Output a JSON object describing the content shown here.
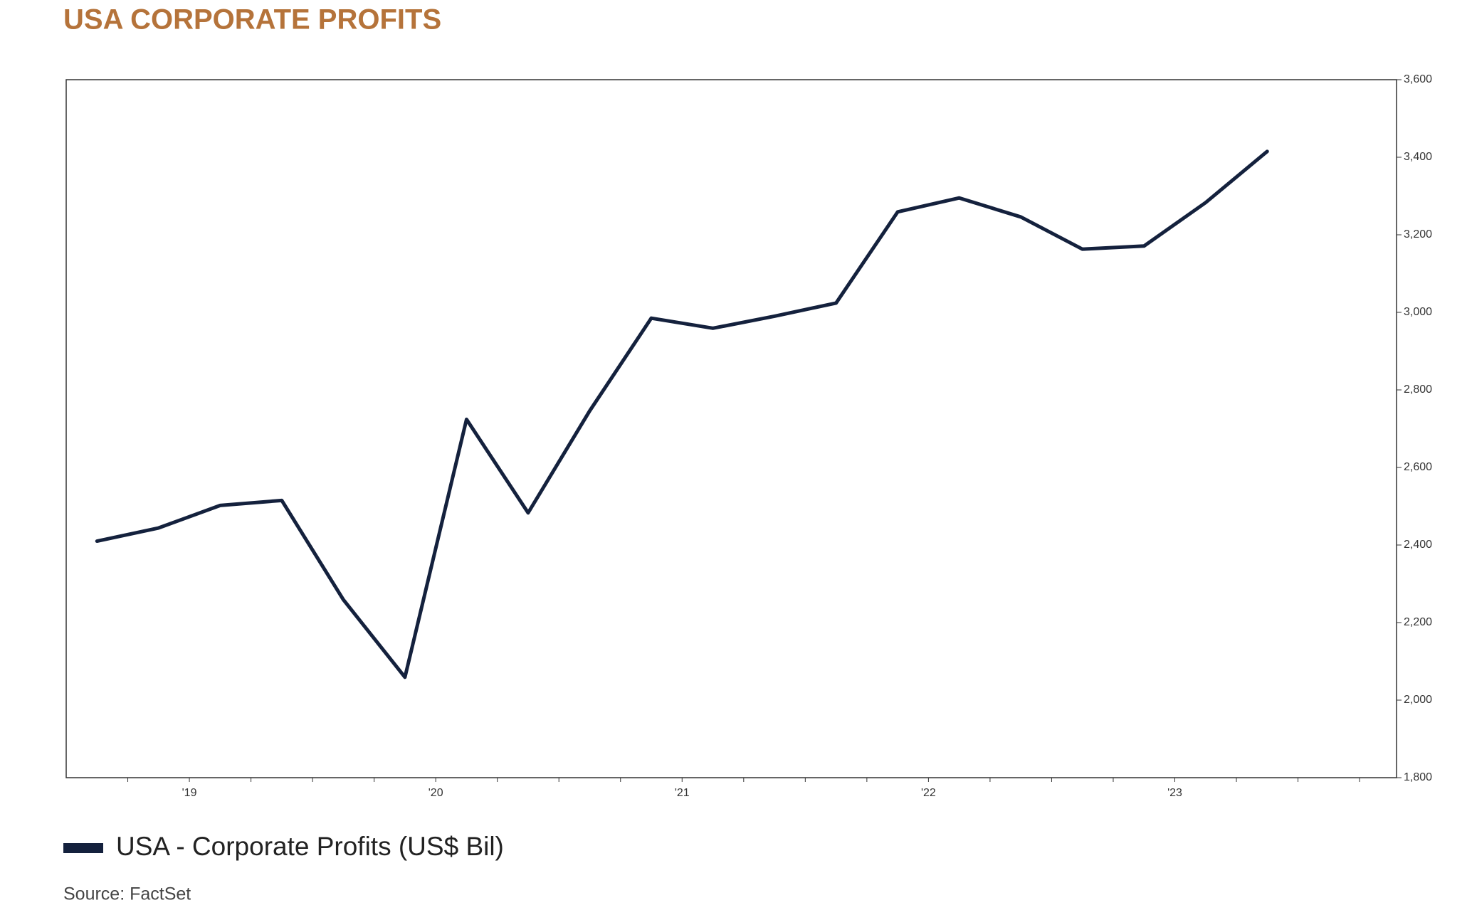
{
  "chart_data": {
    "type": "line",
    "title": "USA CORPORATE PROFITS",
    "source": "Source: FactSet",
    "x": [
      2018.625,
      2018.875,
      2019.125,
      2019.375,
      2019.625,
      2019.875,
      2020.125,
      2020.375,
      2020.625,
      2020.875,
      2021.125,
      2021.375,
      2021.625,
      2021.875,
      2022.125,
      2022.375,
      2022.625,
      2022.875,
      2023.125,
      2023.375
    ],
    "series": [
      {
        "name": "USA - Corporate Profits (US$ Bil)",
        "color": "#14213d",
        "values": [
          2410,
          2444,
          2502,
          2515,
          2259,
          2059,
          2724,
          2483,
          2746,
          2985,
          2959,
          2990,
          3024,
          3259,
          3295,
          3246,
          3163,
          3171,
          3283,
          3415
        ]
      }
    ],
    "xlim": [
      2018.5,
      2023.9
    ],
    "xticks": [
      {
        "value": 2019,
        "label": "'19"
      },
      {
        "value": 2020,
        "label": "'20"
      },
      {
        "value": 2021,
        "label": "'21"
      },
      {
        "value": 2022,
        "label": "'22"
      },
      {
        "value": 2023,
        "label": "'23"
      }
    ],
    "xminorticks": [
      2018.75,
      2019,
      2019.25,
      2019.5,
      2019.75,
      2020,
      2020.25,
      2020.5,
      2020.75,
      2021,
      2021.25,
      2021.5,
      2021.75,
      2022,
      2022.25,
      2022.5,
      2022.75,
      2023,
      2023.25,
      2023.5,
      2023.75
    ],
    "ylim": [
      1800,
      3600
    ],
    "yticks": [
      {
        "value": 1800,
        "label": "1,800"
      },
      {
        "value": 2000,
        "label": "2,000"
      },
      {
        "value": 2200,
        "label": "2,200"
      },
      {
        "value": 2400,
        "label": "2,400"
      },
      {
        "value": 2600,
        "label": "2,600"
      },
      {
        "value": 2800,
        "label": "2,800"
      },
      {
        "value": 3000,
        "label": "3,000"
      },
      {
        "value": 3200,
        "label": "3,200"
      },
      {
        "value": 3400,
        "label": "3,400"
      },
      {
        "value": 3600,
        "label": "3,600"
      }
    ],
    "y_axis_side": "right",
    "grid": false
  }
}
